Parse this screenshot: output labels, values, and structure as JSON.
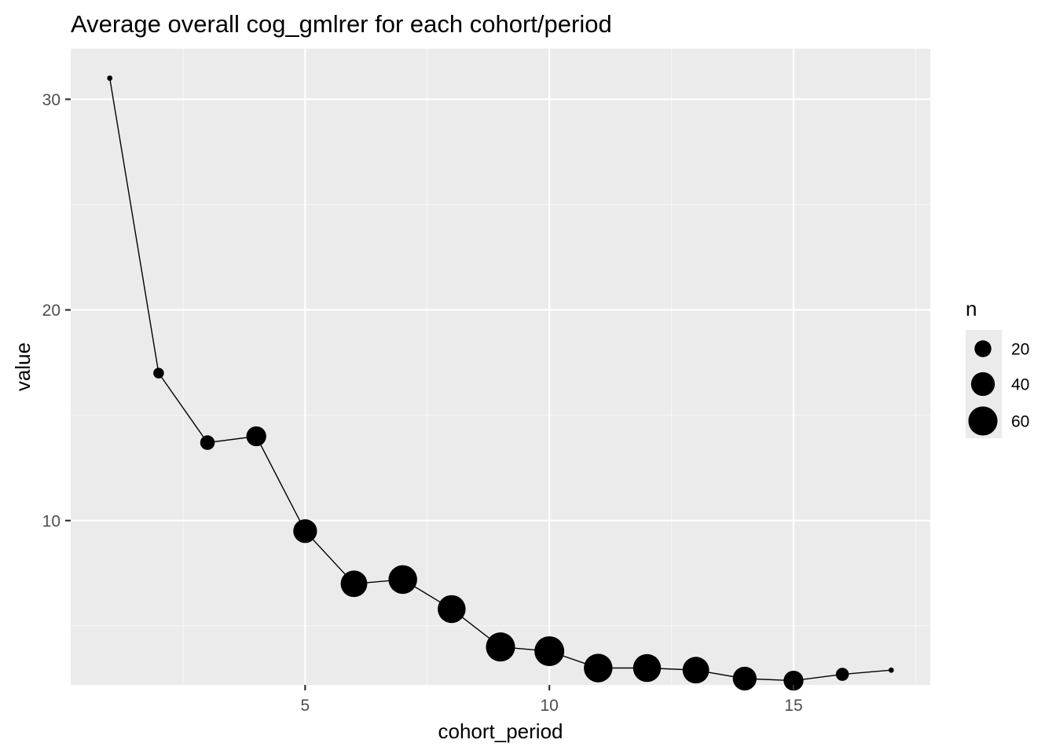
{
  "chart_data": {
    "type": "scatter",
    "title": "Average overall cog_gmlrer for each cohort/period",
    "xlabel": "cohort_period",
    "ylabel": "value",
    "xlim": [
      0.2,
      17.8
    ],
    "ylim": [
      2.2,
      32.4
    ],
    "x_ticks": [
      5,
      10,
      15
    ],
    "x_tick_labels": [
      "5",
      "10",
      "15"
    ],
    "y_ticks": [
      10,
      20,
      30
    ],
    "y_tick_labels": [
      "10",
      "20",
      "30"
    ],
    "grid": true,
    "legend_position": "right",
    "colors": {
      "panel_background": "#ebebeb",
      "grid_major": "#ffffff",
      "grid_minor": "#f5f5f5",
      "points": "#000000",
      "line": "#000000"
    },
    "line_connects_points": true,
    "size_legend": {
      "title": "n",
      "entries": [
        {
          "label": "20",
          "value": 20
        },
        {
          "label": "40",
          "value": 40
        },
        {
          "label": "60",
          "value": 60
        }
      ]
    },
    "points": [
      {
        "x": 1,
        "y": 31.0,
        "n": 2
      },
      {
        "x": 2,
        "y": 17.0,
        "n": 8
      },
      {
        "x": 3,
        "y": 13.7,
        "n": 15
      },
      {
        "x": 4,
        "y": 14.0,
        "n": 28
      },
      {
        "x": 5,
        "y": 9.5,
        "n": 40
      },
      {
        "x": 6,
        "y": 7.0,
        "n": 50
      },
      {
        "x": 7,
        "y": 7.2,
        "n": 58
      },
      {
        "x": 8,
        "y": 5.8,
        "n": 55
      },
      {
        "x": 9,
        "y": 4.0,
        "n": 60
      },
      {
        "x": 10,
        "y": 3.8,
        "n": 63
      },
      {
        "x": 11,
        "y": 3.0,
        "n": 58
      },
      {
        "x": 12,
        "y": 3.0,
        "n": 55
      },
      {
        "x": 13,
        "y": 2.9,
        "n": 50
      },
      {
        "x": 14,
        "y": 2.5,
        "n": 40
      },
      {
        "x": 15,
        "y": 2.4,
        "n": 28
      },
      {
        "x": 16,
        "y": 2.7,
        "n": 12
      },
      {
        "x": 17,
        "y": 2.9,
        "n": 2
      }
    ]
  }
}
